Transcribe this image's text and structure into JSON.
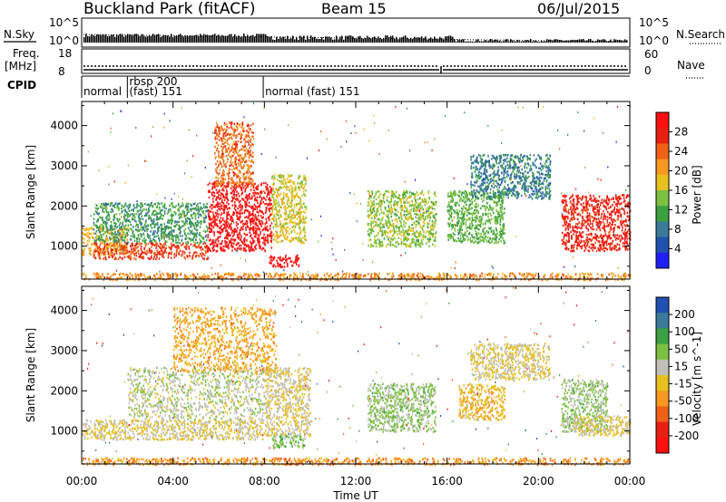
{
  "header": {
    "station": "Buckland Park (fitACF)",
    "beam": "Beam 15",
    "date": "06/Jul/2015"
  },
  "sky_panel": {
    "left_label": "N.Sky",
    "right_label": "N.Search",
    "tick_top": "10^5",
    "tick_bottom": "10^0"
  },
  "freq_panel": {
    "left_label_1": "Freq.",
    "left_label_2": "[MHz]",
    "left_tick_top": "18",
    "left_tick_bottom": "8",
    "right_label": "Nave",
    "right_tick_top": "60",
    "right_tick_bottom": "0"
  },
  "cpid_panel": {
    "label": "CPID",
    "segments": [
      {
        "start_hour": 0,
        "end_hour": 2.0,
        "line1": "",
        "line2": "normal"
      },
      {
        "start_hour": 2.0,
        "end_hour": 7.95,
        "line1": "rbsp 200",
        "line2": "(fast) 151"
      },
      {
        "start_hour": 7.95,
        "end_hour": 24,
        "line1": "",
        "line2": "normal (fast)  151"
      }
    ]
  },
  "axes": {
    "x_label": "Time UT",
    "x_ticks": [
      "00:00",
      "04:00",
      "08:00",
      "12:00",
      "16:00",
      "20:00",
      "00:00"
    ],
    "x_tick_hours": [
      0,
      4,
      8,
      12,
      16,
      20,
      24
    ],
    "x_range": [
      0,
      24
    ],
    "y_label": "Slant Range [km]",
    "y_ticks": [
      "1000",
      "2000",
      "3000",
      "4000"
    ],
    "y_tick_values": [
      1000,
      2000,
      3000,
      4000
    ],
    "y_range": [
      180,
      4600
    ]
  },
  "chart_data": [
    {
      "type": "heatmap",
      "title": "Power",
      "colorbar_label": "Power [dB]",
      "colorbar_ticks": [
        "28",
        "24",
        "20",
        "16",
        "12",
        "8",
        "4"
      ],
      "colorbar_range": [
        0,
        30
      ],
      "colors": [
        "#2020ff",
        "#2050b0",
        "#3a7a9a",
        "#3aa040",
        "#7cc040",
        "#e8c020",
        "#f89820",
        "#f06018",
        "#e82010",
        "#ff1010"
      ],
      "regions": [
        {
          "t": [
            0.0,
            2.0
          ],
          "r": [
            800,
            1500
          ],
          "value": 18
        },
        {
          "t": [
            0.5,
            5.5
          ],
          "r": [
            1100,
            2100
          ],
          "value": 10
        },
        {
          "t": [
            0.5,
            5.5
          ],
          "r": [
            700,
            1100
          ],
          "value": 24
        },
        {
          "t": [
            5.5,
            8.3
          ],
          "r": [
            900,
            2600
          ],
          "value": 28
        },
        {
          "t": [
            5.8,
            7.5
          ],
          "r": [
            2500,
            4100
          ],
          "value": 22
        },
        {
          "t": [
            8.3,
            9.8
          ],
          "r": [
            1100,
            2800
          ],
          "value": 16
        },
        {
          "t": [
            8.2,
            9.5
          ],
          "r": [
            500,
            800
          ],
          "value": 28
        },
        {
          "t": [
            12.5,
            15.5
          ],
          "r": [
            1000,
            2400
          ],
          "value": 14
        },
        {
          "t": [
            16.0,
            18.5
          ],
          "r": [
            1100,
            2400
          ],
          "value": 12
        },
        {
          "t": [
            17.0,
            20.5
          ],
          "r": [
            2200,
            3300
          ],
          "value": 8
        },
        {
          "t": [
            21.0,
            24.0
          ],
          "r": [
            900,
            2300
          ],
          "value": 26
        },
        {
          "t": [
            0.0,
            24.0
          ],
          "r": [
            180,
            350
          ],
          "value": 20
        }
      ]
    },
    {
      "type": "heatmap",
      "title": "Velocity",
      "colorbar_label": "Velocity [m s^-1]",
      "colorbar_ticks": [
        "200",
        "100",
        "50",
        "15",
        "-15",
        "-50",
        "-100",
        "-200"
      ],
      "colorbar_range": [
        -250,
        250
      ],
      "colors": [
        "#ff1010",
        "#e82010",
        "#f06018",
        "#f89820",
        "#e8c020",
        "#c0c0b8",
        "#7cc040",
        "#3aa040",
        "#3a7a9a",
        "#2050b0"
      ],
      "regions": [
        {
          "t": [
            0.0,
            8.0
          ],
          "r": [
            800,
            1300
          ],
          "value": 0
        },
        {
          "t": [
            2.0,
            8.0
          ],
          "r": [
            1300,
            2600
          ],
          "value": 30
        },
        {
          "t": [
            4.0,
            8.5
          ],
          "r": [
            2500,
            4100
          ],
          "value": -60
        },
        {
          "t": [
            8.0,
            10.0
          ],
          "r": [
            900,
            2600
          ],
          "value": 0
        },
        {
          "t": [
            8.3,
            9.8
          ],
          "r": [
            600,
            900
          ],
          "value": 80
        },
        {
          "t": [
            12.5,
            15.5
          ],
          "r": [
            1000,
            2200
          ],
          "value": 60
        },
        {
          "t": [
            16.5,
            18.5
          ],
          "r": [
            1300,
            2200
          ],
          "value": -40
        },
        {
          "t": [
            17.0,
            20.5
          ],
          "r": [
            2300,
            3200
          ],
          "value": 0
        },
        {
          "t": [
            21.0,
            23.0
          ],
          "r": [
            1000,
            2300
          ],
          "value": 60
        },
        {
          "t": [
            21.5,
            24.0
          ],
          "r": [
            900,
            1400
          ],
          "value": 0
        },
        {
          "t": [
            0.0,
            24.0
          ],
          "r": [
            180,
            350
          ],
          "value": -80
        }
      ]
    }
  ]
}
